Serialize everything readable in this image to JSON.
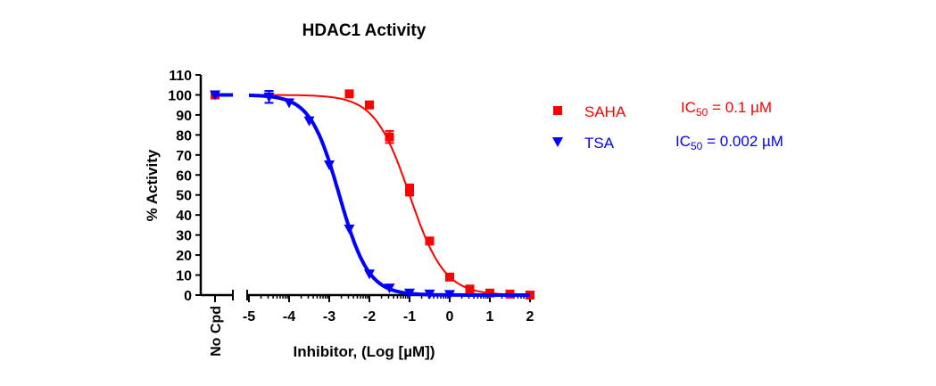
{
  "chart_data": {
    "type": "scatter",
    "title": "HDAC1 Activity",
    "xlabel": "Inhibitor, (Log [µM])",
    "ylabel": "% Activity",
    "xlim": [
      -5,
      2
    ],
    "ylim": [
      0,
      110
    ],
    "x_ticks": [
      "-5",
      "-4",
      "-3",
      "-2",
      "-1",
      "0",
      "1",
      "2"
    ],
    "y_ticks": [
      "0",
      "10",
      "20",
      "30",
      "40",
      "50",
      "60",
      "70",
      "80",
      "90",
      "100",
      "110"
    ],
    "control_label": "No Cpd",
    "grid": false,
    "legend_placement": "right",
    "series": [
      {
        "name": "SAHA",
        "color": "#ff0000",
        "marker": "square",
        "ic50_label": "IC",
        "ic50_sub": "50",
        "ic50_value": " = 0.1 µM",
        "control_value": 100,
        "x": [
          -2.5,
          -2,
          -1.5,
          -1,
          -1,
          -0.5,
          0,
          0.5,
          1,
          1.5,
          2
        ],
        "y": [
          100.5,
          95,
          79,
          51.5,
          53.5,
          27,
          9,
          3,
          1,
          0.5,
          0
        ],
        "error": [
          0,
          0,
          3,
          0,
          0,
          0,
          0,
          0,
          0,
          0,
          0
        ],
        "fit": {
          "log_ic50": -1,
          "hill": 1.0,
          "top": 100,
          "bottom": 0
        }
      },
      {
        "name": "TSA",
        "color": "#0000ff",
        "marker": "triangle-down",
        "ic50_label": "IC",
        "ic50_sub": "50",
        "ic50_value": " = 0.002 µM",
        "control_value": 100,
        "x": [
          -4.5,
          -4,
          -3.5,
          -3,
          -2.5,
          -2,
          -1.5,
          -1,
          -0.5,
          0
        ],
        "y": [
          99,
          96,
          87,
          65,
          33,
          10.5,
          3.5,
          1,
          0.5,
          0.3
        ],
        "error": [
          3,
          0,
          0,
          0,
          0,
          0,
          0,
          0,
          0,
          0
        ],
        "fit": {
          "log_ic50": -2.75,
          "hill": 1.2,
          "top": 100,
          "bottom": 0
        }
      }
    ]
  }
}
